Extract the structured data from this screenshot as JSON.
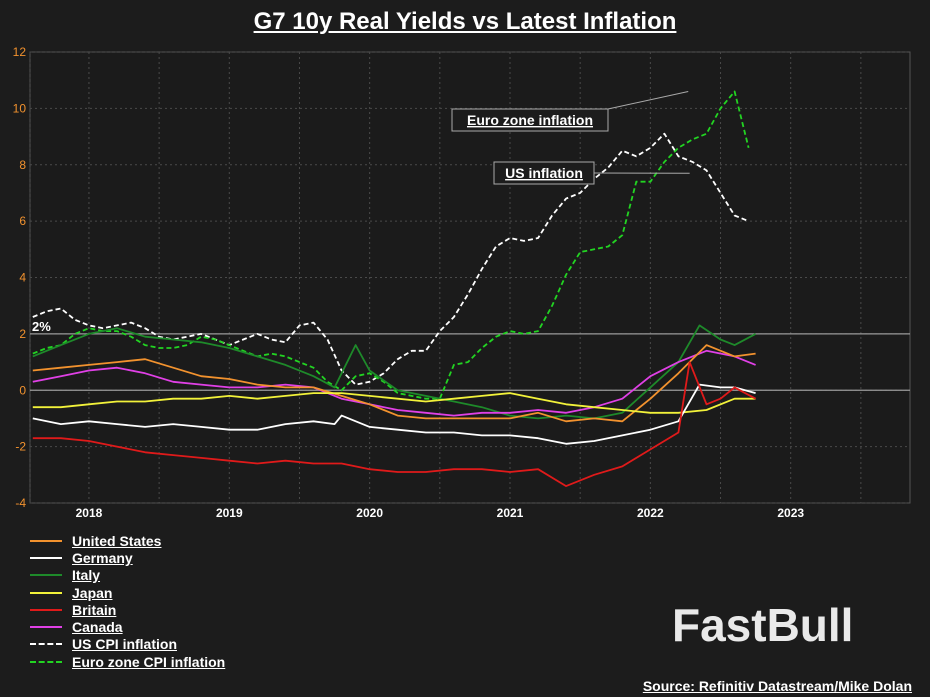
{
  "chart_data": {
    "type": "line",
    "title": "G7 10y Real Yields vs Latest Inflation",
    "ylim": [
      -4,
      12
    ],
    "yticks": [
      12,
      10,
      8,
      6,
      4,
      2,
      0,
      -2,
      -4
    ],
    "xlim": [
      2017.58,
      2023.85
    ],
    "xticks": [
      {
        "label": "2018",
        "value": 2018.0
      },
      {
        "label": "2019",
        "value": 2019.0
      },
      {
        "label": "2020",
        "value": 2020.0
      },
      {
        "label": "2021",
        "value": 2021.0
      },
      {
        "label": "2022",
        "value": 2022.0
      },
      {
        "label": "2023",
        "value": 2023.0
      }
    ],
    "reference_line": {
      "value": 2,
      "label": "2%"
    },
    "annotations": [
      {
        "text": "Euro zone inflation",
        "points_to": [
          2022.27,
          10.6
        ]
      },
      {
        "text": "US inflation",
        "points_to": [
          2022.28,
          7.7
        ]
      }
    ],
    "series": [
      {
        "name": "United States",
        "color": "#f2922e",
        "dash": false,
        "x": [
          2017.6,
          2017.8,
          2018.0,
          2018.2,
          2018.4,
          2018.6,
          2018.8,
          2019.0,
          2019.2,
          2019.4,
          2019.6,
          2019.8,
          2020.0,
          2020.2,
          2020.4,
          2020.6,
          2020.8,
          2021.0,
          2021.2,
          2021.4,
          2021.6,
          2021.8,
          2022.0,
          2022.2,
          2022.4,
          2022.6,
          2022.75
        ],
        "y": [
          0.7,
          0.8,
          0.9,
          1.0,
          1.1,
          0.8,
          0.5,
          0.4,
          0.2,
          0.1,
          0.1,
          -0.2,
          -0.5,
          -0.9,
          -1.0,
          -1.0,
          -1.0,
          -1.0,
          -0.8,
          -1.1,
          -1.0,
          -1.1,
          -0.3,
          0.6,
          1.6,
          1.2,
          1.3
        ]
      },
      {
        "name": "Germany",
        "color": "#ffffff",
        "dash": false,
        "x": [
          2017.6,
          2017.8,
          2018.0,
          2018.2,
          2018.4,
          2018.6,
          2018.8,
          2019.0,
          2019.2,
          2019.4,
          2019.6,
          2019.75,
          2019.8,
          2020.0,
          2020.2,
          2020.4,
          2020.6,
          2020.8,
          2021.0,
          2021.2,
          2021.4,
          2021.6,
          2021.8,
          2022.0,
          2022.2,
          2022.35,
          2022.5,
          2022.6,
          2022.75
        ],
        "y": [
          -1.0,
          -1.2,
          -1.1,
          -1.2,
          -1.3,
          -1.2,
          -1.3,
          -1.4,
          -1.4,
          -1.2,
          -1.1,
          -1.2,
          -0.9,
          -1.3,
          -1.4,
          -1.5,
          -1.5,
          -1.6,
          -1.6,
          -1.7,
          -1.9,
          -1.8,
          -1.6,
          -1.4,
          -1.1,
          0.2,
          0.1,
          0.1,
          -0.1
        ]
      },
      {
        "name": "Italy",
        "color": "#1e8a2a",
        "dash": false,
        "x": [
          2017.6,
          2017.8,
          2018.0,
          2018.2,
          2018.4,
          2018.6,
          2018.8,
          2019.0,
          2019.2,
          2019.4,
          2019.6,
          2019.75,
          2019.9,
          2020.0,
          2020.2,
          2020.4,
          2020.6,
          2020.8,
          2021.0,
          2021.2,
          2021.4,
          2021.6,
          2021.8,
          2022.0,
          2022.2,
          2022.35,
          2022.5,
          2022.6,
          2022.75
        ],
        "y": [
          1.2,
          1.6,
          2.0,
          2.2,
          1.9,
          1.8,
          1.7,
          1.5,
          1.2,
          0.9,
          0.5,
          0.1,
          1.6,
          0.7,
          0.0,
          -0.2,
          -0.4,
          -0.6,
          -0.9,
          -1.0,
          -0.9,
          -1.0,
          -0.8,
          0.1,
          1.0,
          2.3,
          1.8,
          1.6,
          2.0
        ]
      },
      {
        "name": "Japan",
        "color": "#f2f23a",
        "dash": false,
        "x": [
          2017.6,
          2017.8,
          2018.0,
          2018.2,
          2018.4,
          2018.6,
          2018.8,
          2019.0,
          2019.2,
          2019.4,
          2019.6,
          2019.8,
          2020.0,
          2020.2,
          2020.4,
          2020.6,
          2020.8,
          2021.0,
          2021.2,
          2021.4,
          2021.6,
          2021.8,
          2022.0,
          2022.2,
          2022.4,
          2022.6,
          2022.75
        ],
        "y": [
          -0.6,
          -0.6,
          -0.5,
          -0.4,
          -0.4,
          -0.3,
          -0.3,
          -0.2,
          -0.3,
          -0.2,
          -0.1,
          -0.1,
          -0.2,
          -0.3,
          -0.4,
          -0.3,
          -0.2,
          -0.1,
          -0.3,
          -0.5,
          -0.6,
          -0.7,
          -0.8,
          -0.8,
          -0.7,
          -0.3,
          -0.3
        ]
      },
      {
        "name": "Britain",
        "color": "#e01a1a",
        "dash": false,
        "x": [
          2017.6,
          2017.8,
          2018.0,
          2018.2,
          2018.4,
          2018.6,
          2018.8,
          2019.0,
          2019.2,
          2019.4,
          2019.6,
          2019.8,
          2020.0,
          2020.2,
          2020.4,
          2020.6,
          2020.8,
          2021.0,
          2021.2,
          2021.4,
          2021.6,
          2021.8,
          2022.0,
          2022.2,
          2022.28,
          2022.4,
          2022.5,
          2022.6,
          2022.75
        ],
        "y": [
          -1.7,
          -1.7,
          -1.8,
          -2.0,
          -2.2,
          -2.3,
          -2.4,
          -2.5,
          -2.6,
          -2.5,
          -2.6,
          -2.6,
          -2.8,
          -2.9,
          -2.9,
          -2.8,
          -2.8,
          -2.9,
          -2.8,
          -3.4,
          -3.0,
          -2.7,
          -2.1,
          -1.5,
          1.0,
          -0.5,
          -0.3,
          0.1,
          -0.3
        ]
      },
      {
        "name": "Canada",
        "color": "#e040e6",
        "dash": false,
        "x": [
          2017.6,
          2017.8,
          2018.0,
          2018.2,
          2018.4,
          2018.6,
          2018.8,
          2019.0,
          2019.2,
          2019.4,
          2019.6,
          2019.8,
          2020.0,
          2020.2,
          2020.4,
          2020.6,
          2020.8,
          2021.0,
          2021.2,
          2021.4,
          2021.6,
          2021.8,
          2022.0,
          2022.2,
          2022.4,
          2022.6,
          2022.75
        ],
        "y": [
          0.3,
          0.5,
          0.7,
          0.8,
          0.6,
          0.3,
          0.2,
          0.1,
          0.1,
          0.2,
          0.1,
          -0.3,
          -0.5,
          -0.7,
          -0.8,
          -0.9,
          -0.8,
          -0.8,
          -0.7,
          -0.8,
          -0.6,
          -0.3,
          0.5,
          1.0,
          1.4,
          1.2,
          0.9
        ]
      },
      {
        "name": "US CPI inflation",
        "color": "#ffffff",
        "dash": true,
        "x": [
          2017.6,
          2017.7,
          2017.8,
          2017.9,
          2018.0,
          2018.1,
          2018.2,
          2018.3,
          2018.4,
          2018.5,
          2018.6,
          2018.7,
          2018.8,
          2018.9,
          2019.0,
          2019.1,
          2019.2,
          2019.3,
          2019.4,
          2019.5,
          2019.6,
          2019.7,
          2019.8,
          2019.9,
          2020.0,
          2020.1,
          2020.2,
          2020.3,
          2020.4,
          2020.5,
          2020.6,
          2020.7,
          2020.8,
          2020.9,
          2021.0,
          2021.1,
          2021.2,
          2021.3,
          2021.4,
          2021.5,
          2021.6,
          2021.7,
          2021.8,
          2021.9,
          2022.0,
          2022.1,
          2022.2,
          2022.3,
          2022.4,
          2022.5,
          2022.6,
          2022.7
        ],
        "y": [
          2.6,
          2.8,
          2.9,
          2.5,
          2.3,
          2.2,
          2.3,
          2.4,
          2.2,
          1.9,
          1.8,
          1.9,
          2.0,
          1.8,
          1.6,
          1.8,
          2.0,
          1.8,
          1.7,
          2.3,
          2.4,
          1.8,
          0.7,
          0.2,
          0.3,
          0.6,
          1.1,
          1.4,
          1.4,
          2.1,
          2.6,
          3.4,
          4.3,
          5.1,
          5.4,
          5.3,
          5.4,
          6.2,
          6.8,
          7.0,
          7.5,
          7.9,
          8.5,
          8.3,
          8.6,
          9.1,
          8.3,
          8.1,
          7.8,
          7.0,
          6.2,
          6.0
        ]
      },
      {
        "name": "Euro zone CPI inflation",
        "color": "#22d422",
        "dash": true,
        "x": [
          2017.6,
          2017.7,
          2017.8,
          2017.9,
          2018.0,
          2018.1,
          2018.2,
          2018.3,
          2018.4,
          2018.5,
          2018.6,
          2018.7,
          2018.8,
          2018.9,
          2019.0,
          2019.1,
          2019.2,
          2019.3,
          2019.4,
          2019.5,
          2019.6,
          2019.7,
          2019.8,
          2019.9,
          2020.0,
          2020.1,
          2020.2,
          2020.3,
          2020.4,
          2020.5,
          2020.6,
          2020.7,
          2020.8,
          2020.9,
          2021.0,
          2021.1,
          2021.2,
          2021.3,
          2021.4,
          2021.5,
          2021.6,
          2021.7,
          2021.8,
          2021.9,
          2022.0,
          2022.1,
          2022.2,
          2022.3,
          2022.4,
          2022.5,
          2022.6,
          2022.7
        ],
        "y": [
          1.3,
          1.5,
          1.6,
          2.0,
          2.2,
          2.1,
          2.1,
          1.9,
          1.6,
          1.5,
          1.5,
          1.6,
          1.9,
          1.8,
          1.6,
          1.4,
          1.2,
          1.3,
          1.2,
          1.0,
          0.8,
          0.3,
          0.0,
          0.5,
          0.6,
          0.3,
          -0.1,
          -0.2,
          -0.3,
          -0.3,
          0.9,
          1.0,
          1.5,
          1.9,
          2.1,
          2.0,
          2.1,
          3.0,
          4.1,
          4.9,
          5.0,
          5.1,
          5.5,
          7.4,
          7.4,
          8.1,
          8.6,
          8.9,
          9.1,
          10.0,
          10.6,
          8.6
        ]
      }
    ]
  },
  "legend_title_note": "",
  "source": "Source: Refinitiv Datastream/Mike Dolan",
  "watermark": "FastBull"
}
